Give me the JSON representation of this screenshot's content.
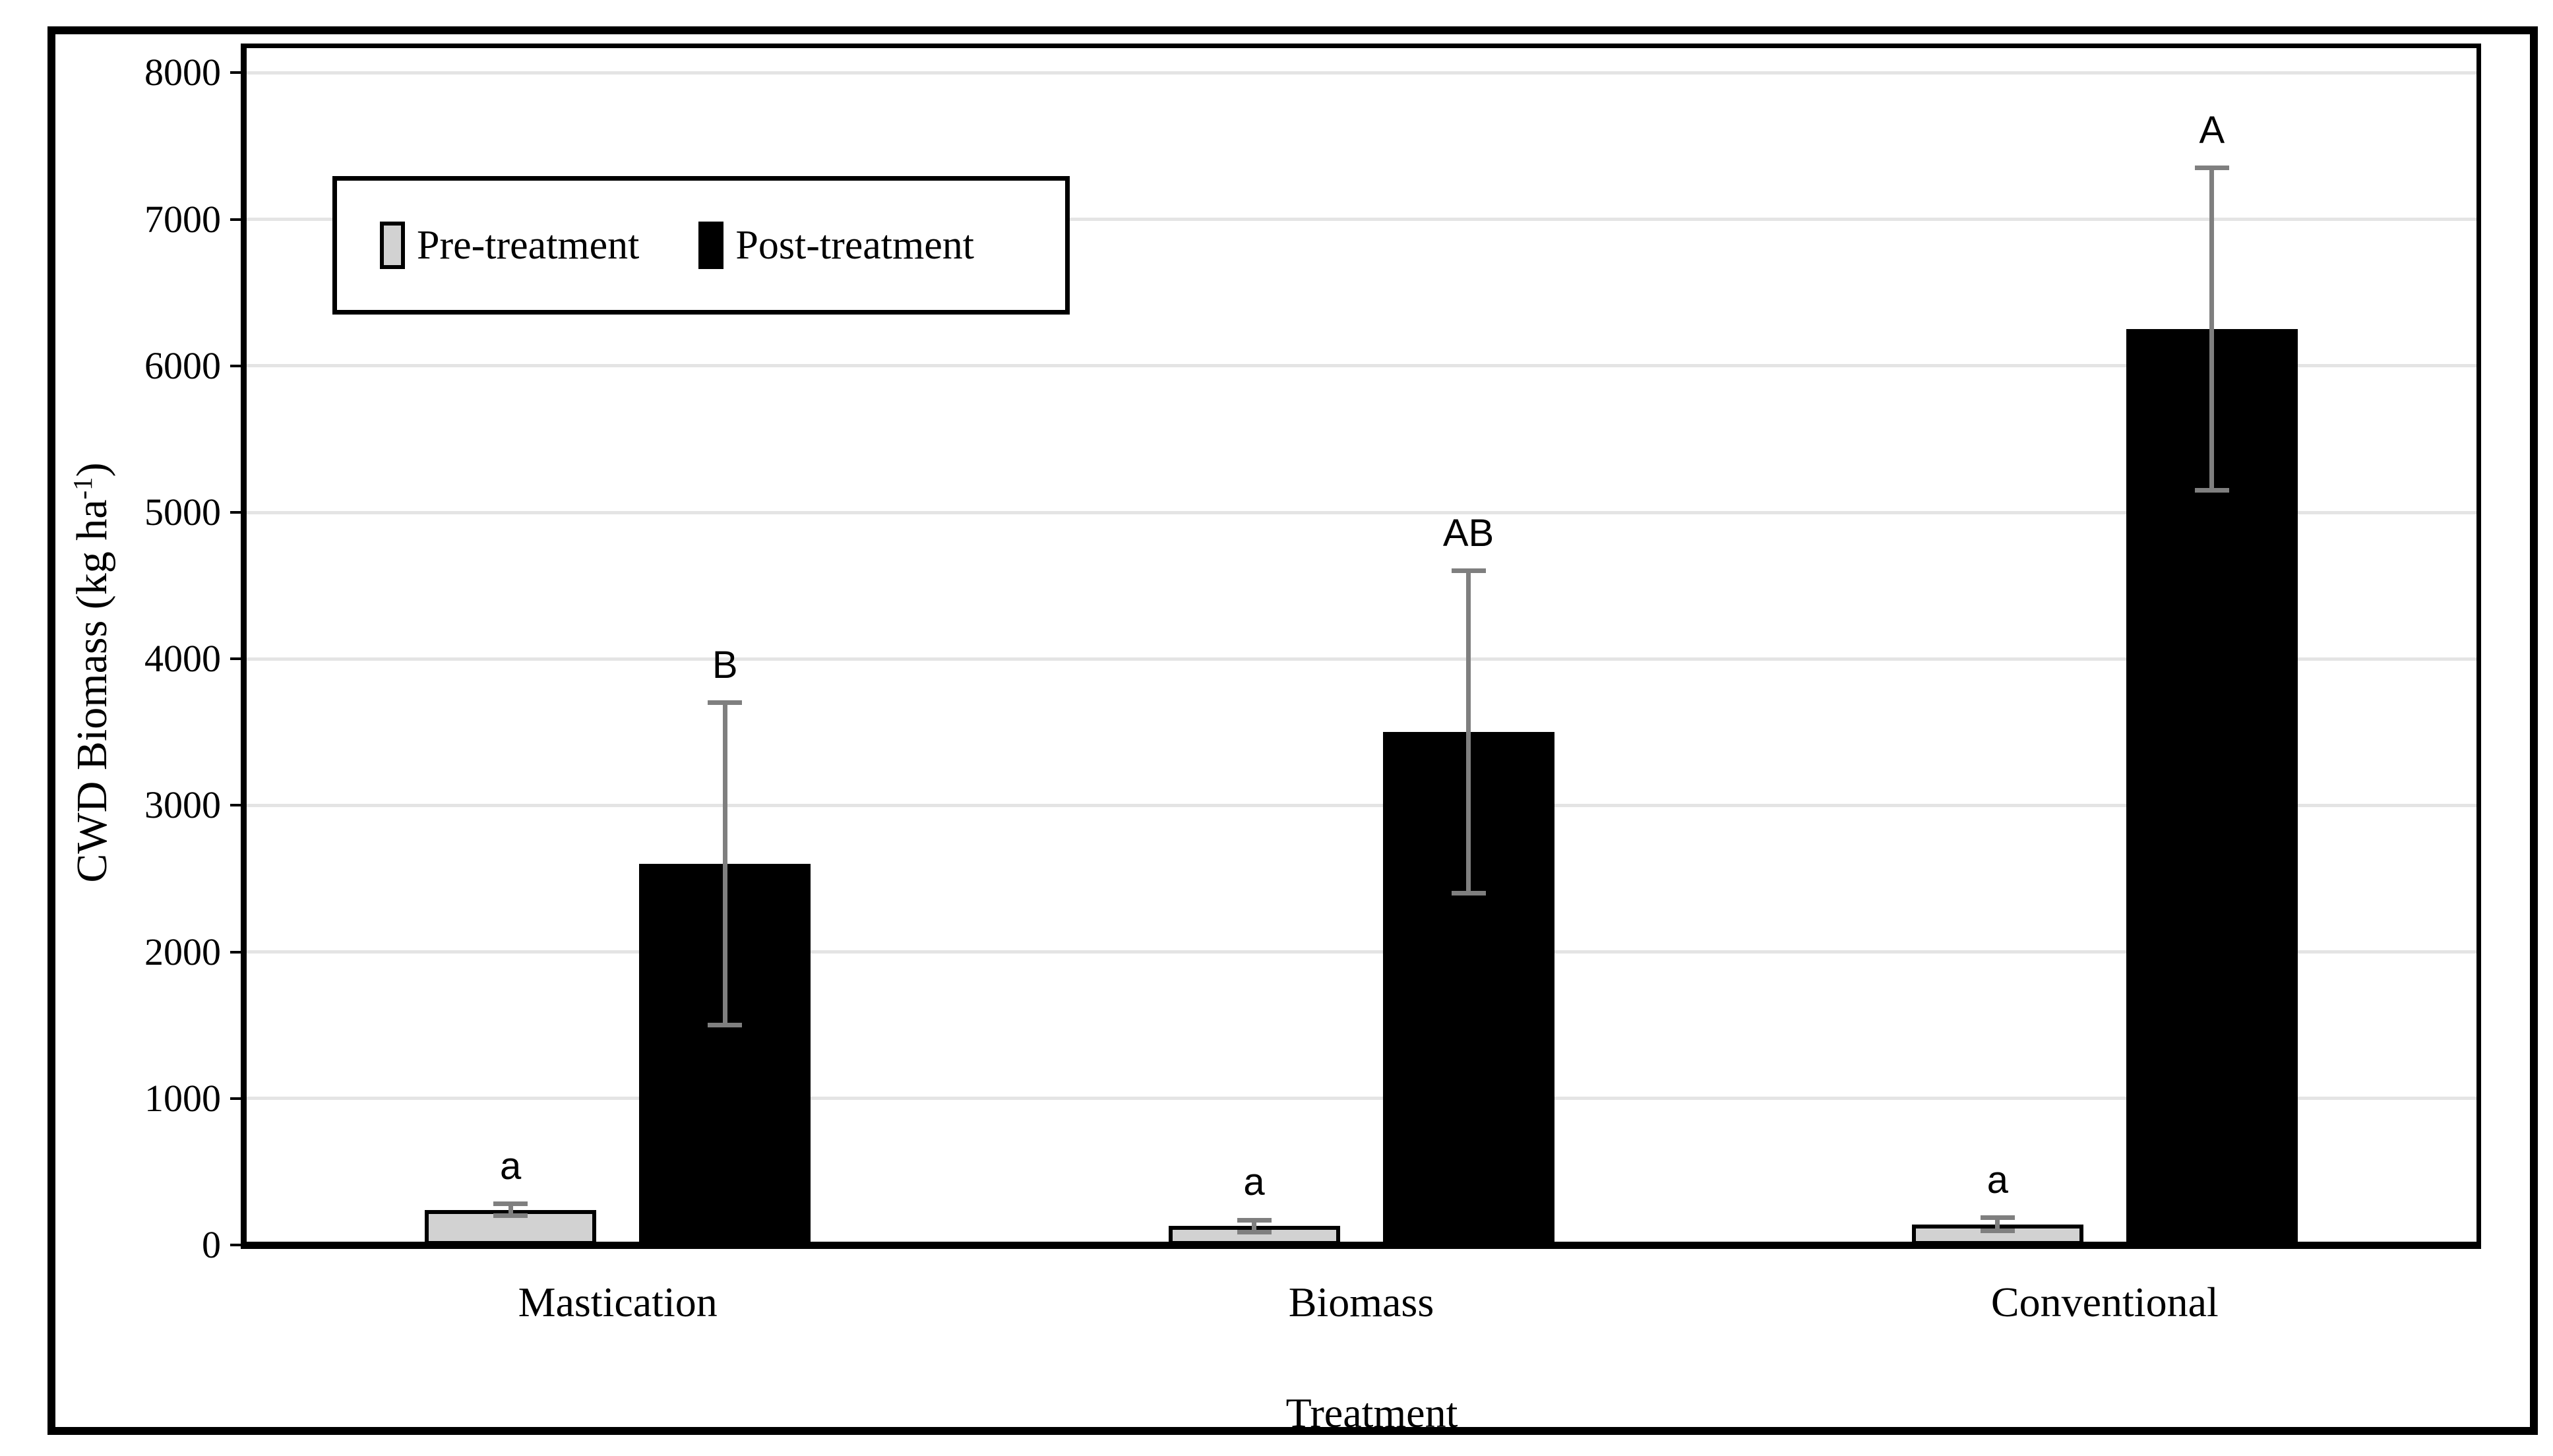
{
  "axes": {
    "x_title": "Treatment",
    "y_title_prefix": "CWD Biomass (kg ha",
    "y_title_sup": "-1",
    "y_title_suffix": ")"
  },
  "legend": {
    "items": [
      {
        "label": "Pre-treatment",
        "color": "#d2d2d2"
      },
      {
        "label": "Post-treatment",
        "color": "#000000"
      }
    ]
  },
  "chart_data": {
    "type": "bar",
    "title": "",
    "xlabel": "Treatment",
    "ylabel": "CWD Biomass (kg ha^-1)",
    "categories": [
      "Mastication",
      "Biomass",
      "Conventional"
    ],
    "series": [
      {
        "name": "Pre-treatment",
        "color": "#d2d2d2",
        "border_color": "#000000",
        "values": [
          240,
          130,
          140
        ],
        "errors": [
          40,
          40,
          45
        ],
        "sig_labels": [
          "a",
          "a",
          "a"
        ]
      },
      {
        "name": "Post-treatment",
        "color": "#000000",
        "border_color": "#000000",
        "values": [
          2600,
          3500,
          6250
        ],
        "errors": [
          1100,
          1100,
          1100
        ],
        "sig_labels": [
          "B",
          "AB",
          "A"
        ]
      }
    ],
    "ylim": [
      0,
      8000
    ],
    "yticks": [
      0,
      1000,
      2000,
      3000,
      4000,
      5000,
      6000,
      7000,
      8000
    ],
    "grid": true,
    "gridline_color": "#e4e4e4",
    "error_bar_color": "#7f7f7f",
    "axis_color": "#000000",
    "sig_label_color": "#000000",
    "legend_position": "inside-top-left"
  }
}
